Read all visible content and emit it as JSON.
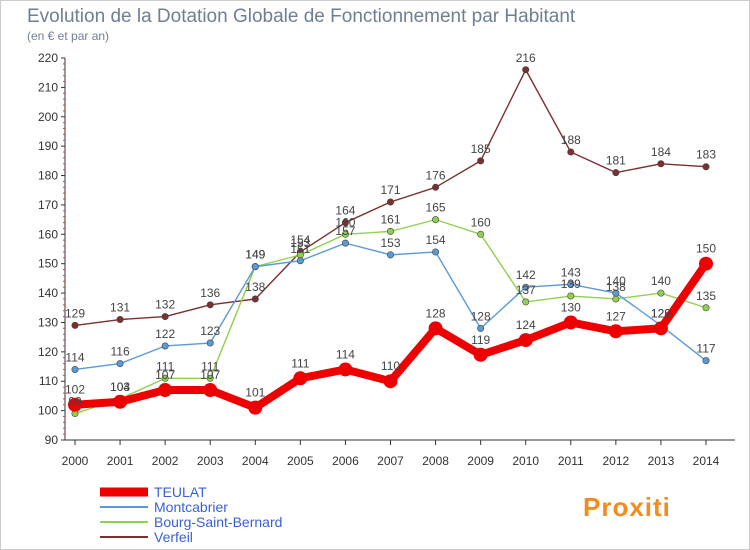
{
  "title": "Evolution de la Dotation Globale de Fonctionnement par Habitant",
  "subtitle": "(en € et par an)",
  "logo": "Proxiti",
  "chart_data": {
    "type": "line",
    "x": [
      "2000",
      "2001",
      "2002",
      "2003",
      "2004",
      "2005",
      "2006",
      "2007",
      "2008",
      "2009",
      "2010",
      "2011",
      "2012",
      "2013",
      "2014"
    ],
    "ylim": [
      90,
      220
    ],
    "yticks": [
      90,
      100,
      110,
      120,
      130,
      140,
      150,
      160,
      170,
      180,
      190,
      200,
      210,
      220
    ],
    "grid": false,
    "legend_position": "bottom-left",
    "series": [
      {
        "name": "Verfeil",
        "color": "#7b2f2f",
        "values": [
          129,
          131,
          132,
          136,
          138,
          154,
          164,
          171,
          176,
          185,
          216,
          188,
          181,
          184,
          183
        ]
      },
      {
        "name": "Bourg-Saint-Bernard",
        "color": "#8fd14f",
        "values": [
          99,
          104,
          111,
          111,
          149,
          153,
          160,
          161,
          165,
          160,
          137,
          139,
          138,
          140,
          135
        ]
      },
      {
        "name": "Montcabrier",
        "color": "#5a9bd5",
        "values": [
          114,
          116,
          122,
          123,
          149,
          151,
          157,
          153,
          154,
          128,
          142,
          143,
          140,
          129,
          117
        ]
      },
      {
        "name": "TEULAT",
        "color": "#ee0000",
        "values": [
          102,
          103,
          107,
          107,
          101,
          111,
          114,
          110,
          128,
          119,
          124,
          130,
          127,
          128,
          150
        ]
      }
    ],
    "legend": [
      "TEULAT",
      "Montcabrier",
      "Bourg-Saint-Bernard",
      "Verfeil"
    ]
  }
}
